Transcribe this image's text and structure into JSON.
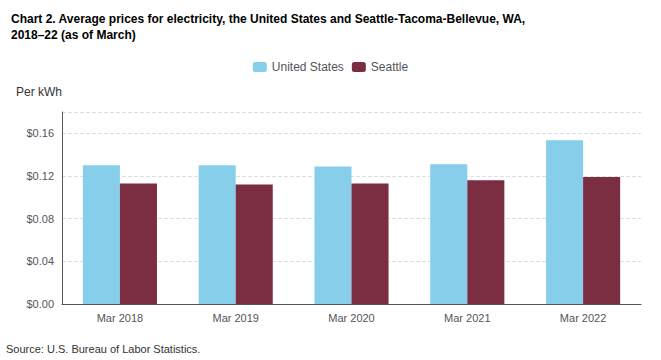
{
  "chart_data": {
    "type": "bar",
    "title": "Chart 2. Average prices for electricity, the United States and Seattle-Tacoma-Bellevue, WA,\n2018–22 (as of March)",
    "ylabel": "Per kWh",
    "annotations": [
      "Source: U.S. Bureau of Labor Statistics."
    ],
    "categories": [
      "Mar 2018",
      "Mar 2019",
      "Mar 2020",
      "Mar 2021",
      "Mar 2022"
    ],
    "series": [
      {
        "name": "United States",
        "color": "#87CEEB",
        "values": [
          0.13,
          0.13,
          0.129,
          0.131,
          0.1535
        ]
      },
      {
        "name": "Seattle",
        "color": "#7B2D42",
        "values": [
          0.113,
          0.112,
          0.113,
          0.116,
          0.119
        ]
      }
    ],
    "ylim": [
      0.0,
      0.18
    ],
    "yticks": [
      {
        "value": 0.0,
        "label": "$0.00"
      },
      {
        "value": 0.04,
        "label": "$0.04"
      },
      {
        "value": 0.08,
        "label": "$0.08"
      },
      {
        "value": 0.12,
        "label": "$0.12"
      },
      {
        "value": 0.16,
        "label": "$0.16"
      }
    ],
    "grid": true,
    "legend": "top"
  }
}
